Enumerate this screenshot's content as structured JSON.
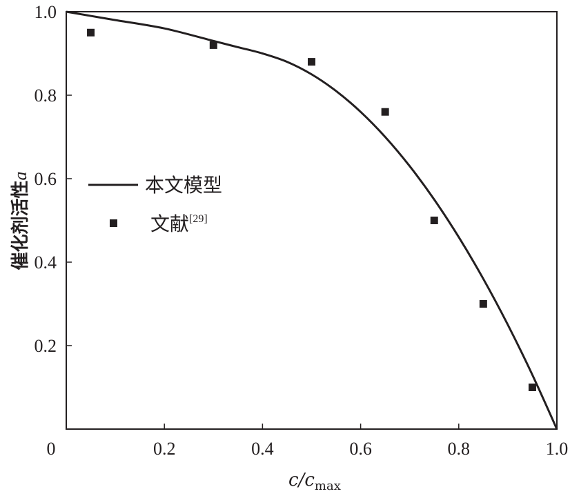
{
  "chart_data": {
    "type": "line",
    "xlabel": "c/c",
    "xlabel_sub": "max",
    "ylabel": "催化剂活性",
    "ylabel_var": "a",
    "xlim": [
      0,
      1.0
    ],
    "ylim": [
      0,
      1.0
    ],
    "x_ticks": [
      "0",
      "0.2",
      "0.4",
      "0.6",
      "0.8",
      "1.0"
    ],
    "y_ticks": [
      "0.2",
      "0.4",
      "0.6",
      "0.8",
      "1.0"
    ],
    "grid": false,
    "legend_position": "left-middle",
    "series": [
      {
        "name": "本文模型",
        "kind": "line",
        "color": "#231f20",
        "x": [
          0,
          0.05,
          0.1,
          0.2,
          0.3,
          0.35,
          0.4,
          0.45,
          0.5,
          0.55,
          0.6,
          0.65,
          0.7,
          0.75,
          0.8,
          0.85,
          0.9,
          0.95,
          1.0
        ],
        "y": [
          1.0,
          0.99,
          0.98,
          0.96,
          0.93,
          0.915,
          0.9,
          0.88,
          0.85,
          0.81,
          0.76,
          0.7,
          0.63,
          0.55,
          0.46,
          0.36,
          0.25,
          0.13,
          0.0
        ]
      },
      {
        "name": "文献",
        "name_ref": "[29]",
        "kind": "scatter",
        "color": "#231f20",
        "x": [
          0.05,
          0.3,
          0.5,
          0.65,
          0.75,
          0.85,
          0.95
        ],
        "y": [
          0.95,
          0.92,
          0.88,
          0.76,
          0.5,
          0.3,
          0.1
        ]
      }
    ]
  }
}
